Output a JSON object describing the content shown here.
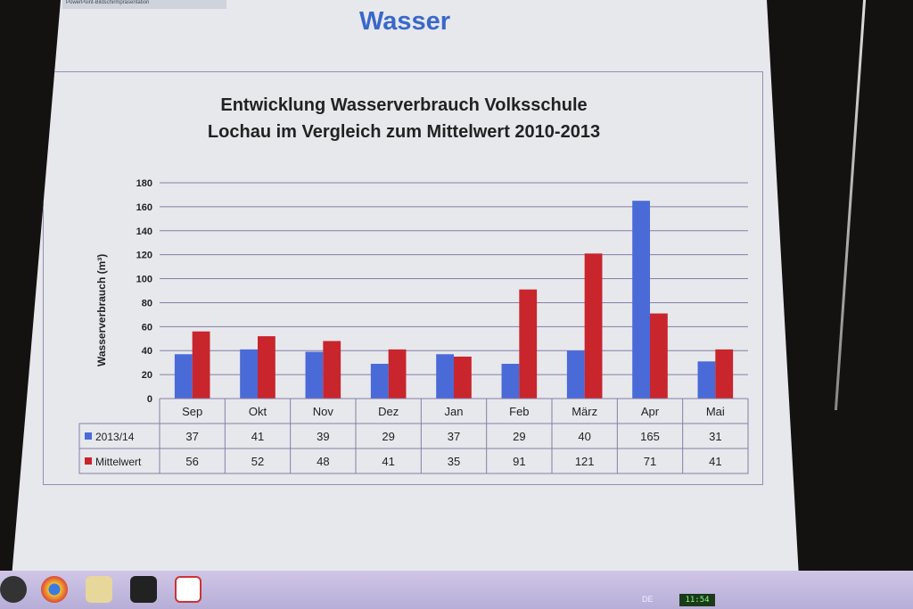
{
  "window": {
    "titlebar_text": "PowerPoint-Bildschirmpräsentation"
  },
  "slide": {
    "title": "Wasser"
  },
  "chart_data": {
    "type": "bar",
    "title_line1": "Entwicklung Wasserverbrauch Volksschule",
    "title_line2": "Lochau im Vergleich zum Mittelwert 2010-2013",
    "ylabel": "Wasserverbrauch (m³)",
    "xlabel": "",
    "ylim": [
      0,
      180
    ],
    "yticks": [
      "0",
      "20",
      "40",
      "60",
      "80",
      "100",
      "120",
      "140",
      "160",
      "180"
    ],
    "categories": [
      "Sep",
      "Okt",
      "Nov",
      "Dez",
      "Jan",
      "Feb",
      "März",
      "Apr",
      "Mai"
    ],
    "series": [
      {
        "name": "2013/14",
        "values": [
          37,
          41,
          39,
          29,
          37,
          29,
          40,
          165,
          31
        ],
        "color": "#4a6ad8"
      },
      {
        "name": "Mittelwert",
        "values": [
          56,
          52,
          48,
          41,
          35,
          91,
          121,
          71,
          41
        ],
        "color": "#c8252d"
      }
    ],
    "grid": true,
    "legend": "data-table"
  },
  "taskbar": {
    "language": "DE",
    "clock": "11:54",
    "icons": [
      "start-icon",
      "chrome-icon",
      "explorer-icon",
      "app-icon",
      "powerpoint-icon"
    ]
  }
}
